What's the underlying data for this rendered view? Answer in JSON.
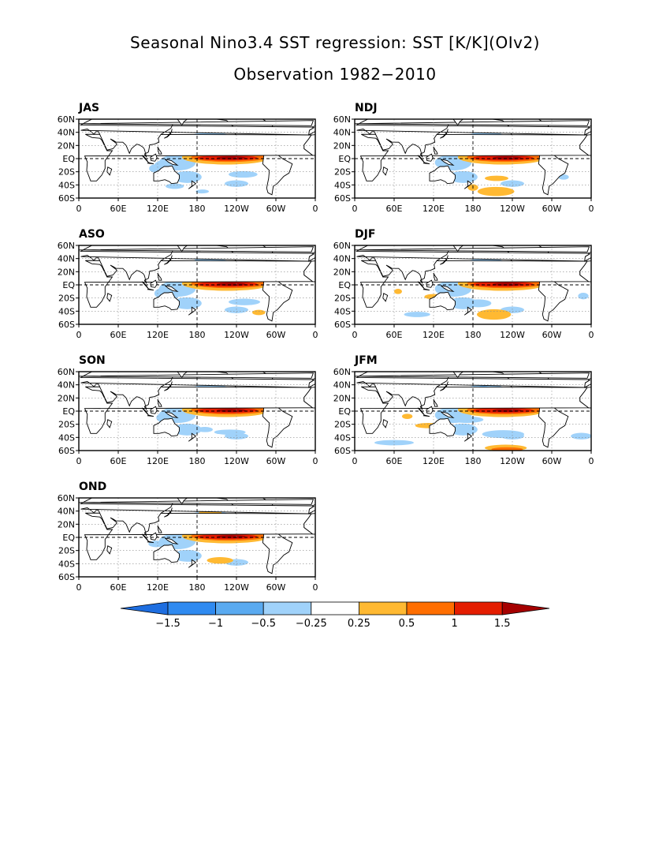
{
  "figure": {
    "title_line1": "Seasonal Nino3.4 SST regression: SST [K/K](OIv2)",
    "title_line2": "Observation 1982−2010"
  },
  "chart_data": {
    "type": "heatmap",
    "panels": [
      "JAS",
      "NDJ",
      "ASO",
      "DJF",
      "SON",
      "JFM",
      "OND"
    ],
    "x_ticks": [
      "0",
      "60E",
      "120E",
      "180",
      "120W",
      "60W",
      "0"
    ],
    "y_ticks": [
      "60N",
      "40N",
      "20N",
      "EQ",
      "20S",
      "40S",
      "60S"
    ],
    "xlim": [
      0,
      360
    ],
    "ylim": [
      -60,
      60
    ],
    "grid": true,
    "reference_lines": [
      "EQ",
      "180"
    ],
    "colorbar": {
      "levels": [
        "−1.5",
        "−1",
        "−0.5",
        "−0.25",
        "0.25",
        "0.5",
        "1",
        "1.5"
      ],
      "colors": [
        "#1e6ee0",
        "#2f8af0",
        "#5aaaf0",
        "#a0d2fa",
        "#ffffff",
        "#ffb932",
        "#ff6e00",
        "#e41d00",
        "#a50000"
      ],
      "placement": "bottom"
    }
  }
}
